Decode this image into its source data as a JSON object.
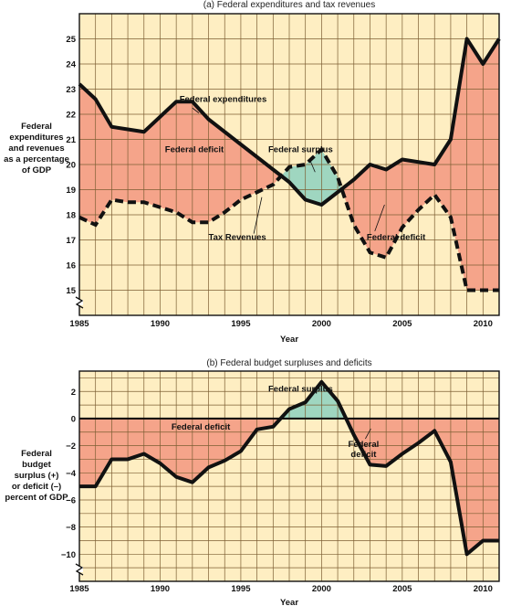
{
  "chart_data": [
    {
      "type": "line",
      "title": "(a) Federal expenditures and tax revenues",
      "xlabel": "Year",
      "ylabel_lines": [
        "Federal",
        "expenditures",
        "and revenues",
        "as a percentage",
        "of GDP"
      ],
      "xlim": [
        1985,
        2011
      ],
      "ylim": [
        14,
        26
      ],
      "x_ticks": [
        1985,
        1990,
        1995,
        2000,
        2005,
        2010
      ],
      "y_ticks": [
        15,
        16,
        17,
        18,
        19,
        20,
        21,
        22,
        23,
        24,
        25
      ],
      "x": [
        1985,
        1986,
        1987,
        1988,
        1989,
        1990,
        1991,
        1992,
        1993,
        1994,
        1995,
        1996,
        1997,
        1998,
        1999,
        2000,
        2001,
        2002,
        2003,
        2004,
        2005,
        2006,
        2007,
        2008,
        2009,
        2010,
        2011
      ],
      "series": [
        {
          "name": "Federal expenditures",
          "style": "solid",
          "values": [
            23.2,
            22.6,
            21.5,
            21.4,
            21.3,
            21.9,
            22.5,
            22.5,
            21.8,
            21.3,
            20.8,
            20.3,
            19.8,
            19.3,
            18.6,
            18.4,
            18.9,
            19.4,
            20.0,
            19.8,
            20.2,
            20.1,
            20.0,
            21.0,
            25.0,
            24.0,
            25.0
          ]
        },
        {
          "name": "Tax Revenues",
          "style": "dashed",
          "values": [
            17.9,
            17.6,
            18.6,
            18.5,
            18.5,
            18.3,
            18.1,
            17.7,
            17.7,
            18.1,
            18.6,
            18.9,
            19.2,
            19.9,
            20.0,
            20.6,
            19.5,
            17.6,
            16.5,
            16.3,
            17.5,
            18.2,
            18.8,
            17.9,
            15.0,
            15.0,
            15.0
          ]
        }
      ],
      "annotations": [
        {
          "text": "Federal expenditures",
          "x": 1991.2,
          "y": 22.5
        },
        {
          "text": "Federal deficit",
          "x": 1990.3,
          "y": 20.5
        },
        {
          "text": "Federal surplus",
          "x": 1998.7,
          "y": 20.5
        },
        {
          "text": "Tax Revenues",
          "x": 1993.0,
          "y": 17.0
        },
        {
          "text": "Federal deficit",
          "x": 2002.8,
          "y": 17.0
        }
      ],
      "colors": {
        "background": "#FEEEC2",
        "grid": "#7C5E33",
        "deficit": "#F5A48A",
        "surplus": "#9FD6C0",
        "line": "#111111"
      }
    },
    {
      "type": "line",
      "title": "(b) Federal budget surpluses and deficits",
      "xlabel": "Year",
      "ylabel_lines": [
        "Federal",
        "budget",
        "surplus (+)",
        "or deficit (–)",
        "percent of GDP"
      ],
      "xlim": [
        1985,
        2011
      ],
      "ylim": [
        -12,
        3.5
      ],
      "x_ticks": [
        1985,
        1990,
        1995,
        2000,
        2005,
        2010
      ],
      "y_ticks": [
        2,
        0,
        -2,
        -4,
        -6,
        -8,
        -10
      ],
      "x": [
        1985,
        1986,
        1987,
        1988,
        1989,
        1990,
        1991,
        1992,
        1993,
        1994,
        1995,
        1996,
        1997,
        1998,
        1999,
        2000,
        2001,
        2002,
        2003,
        2004,
        2005,
        2006,
        2007,
        2008,
        2009,
        2010,
        2011
      ],
      "series": [
        {
          "name": "Federal budget surplus or deficit",
          "style": "solid",
          "values": [
            -5.0,
            -5.0,
            -3.0,
            -3.0,
            -2.6,
            -3.3,
            -4.3,
            -4.7,
            -3.6,
            -3.1,
            -2.4,
            -0.8,
            -0.6,
            0.7,
            1.2,
            2.7,
            1.3,
            -1.2,
            -3.4,
            -3.5,
            -2.6,
            -1.8,
            -0.9,
            -3.2,
            -10.0,
            -9.0,
            -9.0
          ]
        }
      ],
      "annotations": [
        {
          "text": "Federal surplus",
          "x": 1998.7,
          "y": 2.0
        },
        {
          "text": "Federal deficit",
          "x": 1990.7,
          "y": -0.8
        },
        {
          "text": "Federal deficit",
          "x": 2002.6,
          "y": -2.1
        }
      ],
      "colors": {
        "background": "#FEEEC2",
        "grid": "#7C5E33",
        "deficit": "#F5A48A",
        "surplus": "#9FD6C0",
        "line": "#111111"
      }
    }
  ]
}
